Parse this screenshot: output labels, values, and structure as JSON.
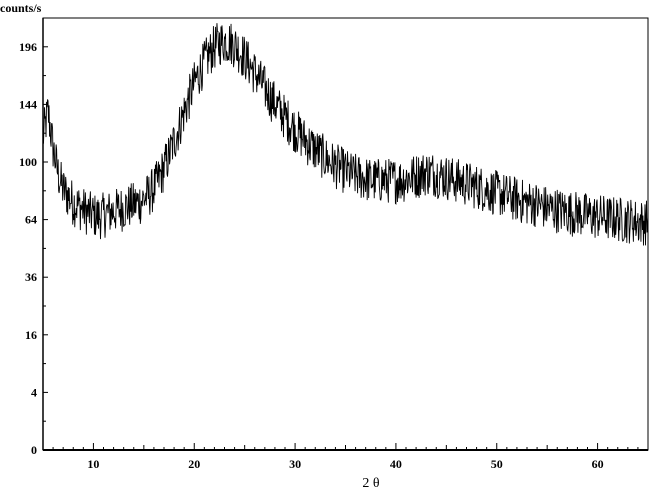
{
  "chart_data": {
    "type": "line",
    "title": "",
    "xlabel": "2 θ",
    "ylabel": "counts/s",
    "y_scale": "sqrt",
    "xlim": [
      5,
      65
    ],
    "ylim": [
      0,
      225
    ],
    "x_ticks": [
      10,
      20,
      30,
      40,
      50,
      60
    ],
    "y_ticks": [
      0,
      4,
      16,
      36,
      64,
      100,
      144,
      196
    ],
    "grid": false,
    "legend": "none",
    "line_color": "#000000",
    "series": [
      {
        "x": [
          5,
          5.5,
          6,
          6.5,
          7,
          7.5,
          8,
          8.5,
          9,
          9.5,
          10,
          10.5,
          11,
          11.5,
          12,
          12.5,
          13,
          13.5,
          14,
          14.5,
          15,
          15.5,
          16,
          16.5,
          17,
          17.5,
          18,
          18.5,
          19,
          19.5,
          20,
          20.5,
          21,
          21.5,
          22,
          22.5,
          23,
          23.5,
          24,
          24.5,
          25,
          25.5,
          26,
          26.5,
          27,
          27.5,
          28,
          28.5,
          29,
          29.5,
          30,
          30.5,
          31,
          31.5,
          32,
          32.5,
          33,
          33.5,
          34,
          34.5,
          35,
          35.5,
          36,
          36.5,
          37,
          37.5,
          38,
          38.5,
          39,
          39.5,
          40,
          40.5,
          41,
          41.5,
          42,
          42.5,
          43,
          43.5,
          44,
          44.5,
          45,
          45.5,
          46,
          46.5,
          47,
          47.5,
          48,
          48.5,
          49,
          49.5,
          50,
          50.5,
          51,
          51.5,
          52,
          52.5,
          53,
          53.5,
          54,
          54.5,
          55,
          55.5,
          56,
          56.5,
          57,
          57.5,
          58,
          58.5,
          59,
          59.5,
          60,
          60.5,
          61,
          61.5,
          62,
          62.5,
          63,
          63.5,
          64,
          64.5,
          65
        ],
        "values": [
          118,
          138,
          110,
          92,
          82,
          78,
          74,
          72,
          70,
          68,
          67,
          66,
          67,
          68,
          69,
          70,
          71,
          72,
          73,
          74,
          76,
          79,
          83,
          89,
          96,
          105,
          115,
          126,
          138,
          150,
          162,
          172,
          181,
          189,
          196,
          200,
          202,
          201,
          198,
          192,
          186,
          179,
          172,
          165,
          158,
          151,
          145,
          139,
          134,
          129,
          124,
          120,
          116,
          112,
          109,
          106,
          103,
          100,
          98,
          96,
          94,
          92,
          91,
          90,
          89,
          88,
          88,
          88,
          88,
          88,
          88,
          88,
          89,
          90,
          91,
          92,
          93,
          93,
          92,
          91,
          90,
          89,
          88,
          87,
          86,
          85,
          84,
          83,
          82,
          81,
          80,
          79,
          78,
          77,
          76,
          75,
          74,
          74,
          73,
          72,
          71,
          70,
          70,
          69,
          69,
          68,
          68,
          67,
          67,
          66,
          66,
          66,
          65,
          65,
          65,
          64,
          64,
          64,
          63,
          63,
          63
        ]
      }
    ]
  }
}
